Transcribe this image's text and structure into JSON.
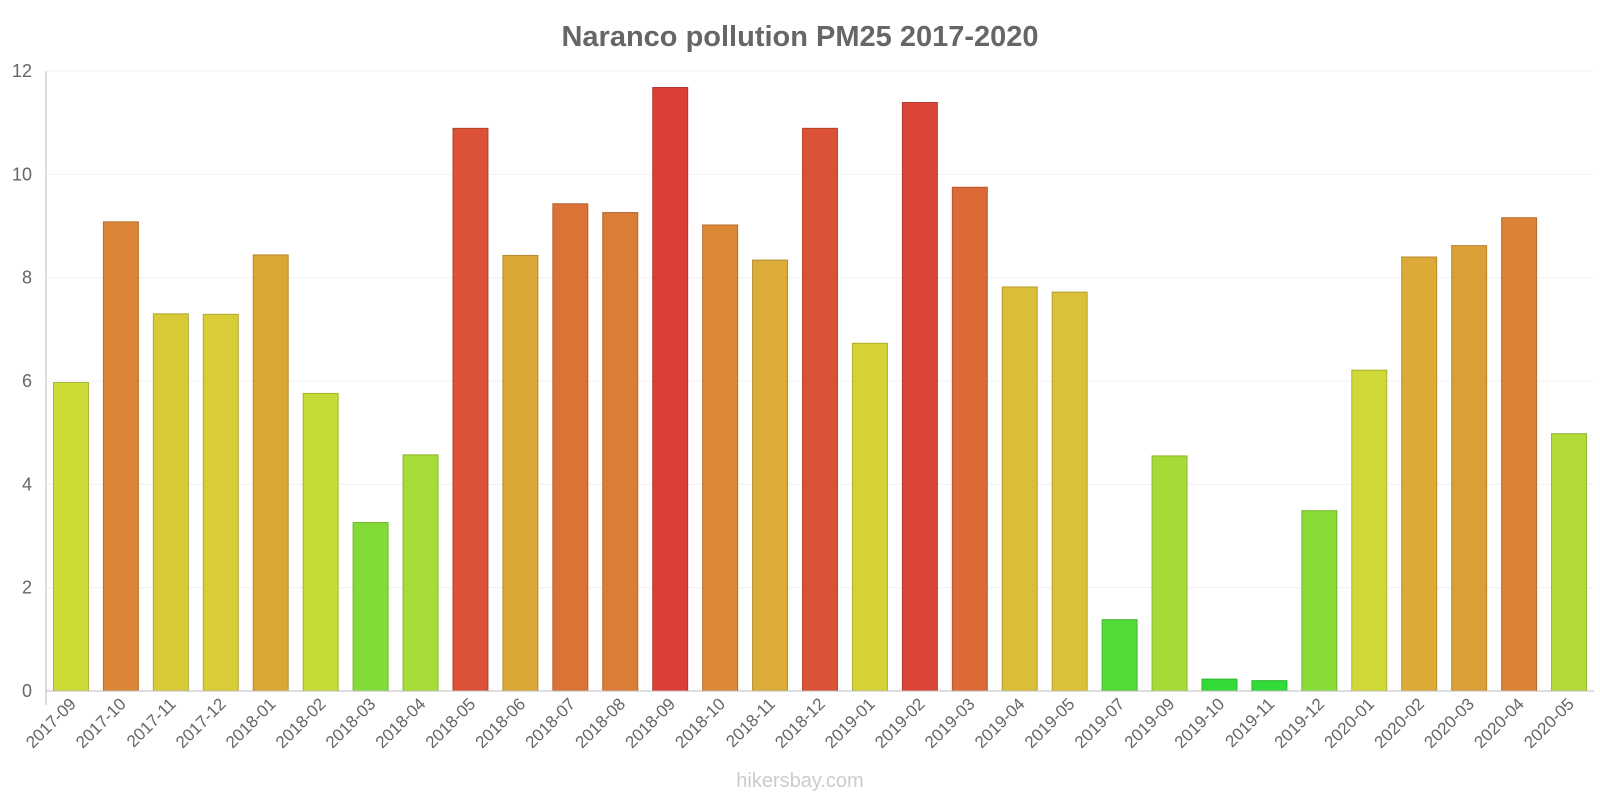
{
  "chart_data": {
    "type": "bar",
    "title": "Naranco pollution PM25 2017-2020",
    "xlabel": "",
    "ylabel": "",
    "ylim": [
      0,
      12
    ],
    "yticks": [
      0,
      2,
      4,
      6,
      8,
      10,
      12
    ],
    "grid": true,
    "categories": [
      "2017-09",
      "2017-10",
      "2017-11",
      "2017-12",
      "2018-01",
      "2018-02",
      "2018-03",
      "2018-04",
      "2018-05",
      "2018-06",
      "2018-07",
      "2018-08",
      "2018-09",
      "2018-10",
      "2018-11",
      "2018-12",
      "2019-01",
      "2019-02",
      "2019-03",
      "2019-04",
      "2019-05",
      "2019-07",
      "2019-09",
      "2019-10",
      "2019-11",
      "2019-12",
      "2020-01",
      "2020-02",
      "2020-03",
      "2020-04",
      "2020-05"
    ],
    "values": [
      5.97,
      9.08,
      7.3,
      7.29,
      8.44,
      5.76,
      3.26,
      4.57,
      10.89,
      8.43,
      9.43,
      9.26,
      11.68,
      9.02,
      8.34,
      10.89,
      6.73,
      11.39,
      9.75,
      7.82,
      7.72,
      1.38,
      4.55,
      0.23,
      0.2,
      3.49,
      6.21,
      8.4,
      8.62,
      9.16,
      4.98
    ]
  },
  "watermark": "hikersbay.com"
}
